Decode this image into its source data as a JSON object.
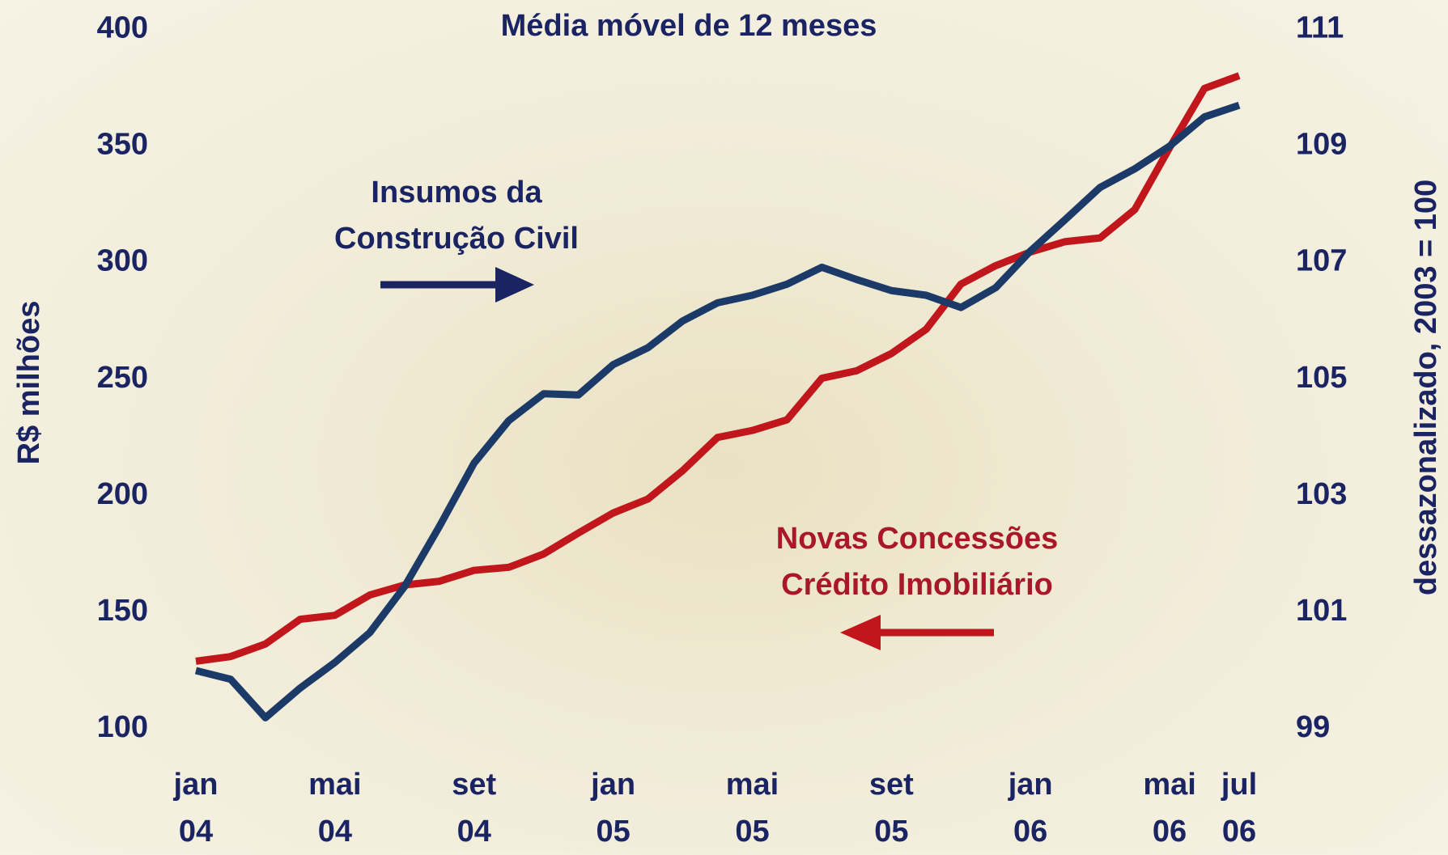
{
  "chart_data": {
    "type": "line",
    "title": "Média móvel de 12 meses",
    "ylabel": "R$ milhões",
    "y2label": "dessazonalizado, 2003 = 100",
    "categories": [
      "jan 04",
      null,
      null,
      null,
      "mai 04",
      null,
      null,
      null,
      "set 04",
      null,
      null,
      null,
      "jan 05",
      null,
      null,
      null,
      "mai 05",
      null,
      null,
      null,
      "set 05",
      null,
      null,
      null,
      "jan 06",
      null,
      null,
      null,
      "mai 06",
      null,
      "jul 06"
    ],
    "ylim": [
      100,
      400
    ],
    "yticks": [
      100,
      150,
      200,
      250,
      300,
      350,
      400
    ],
    "y2lim": [
      99,
      111
    ],
    "y2ticks": [
      99,
      101,
      103,
      105,
      107,
      109,
      111
    ],
    "grid": false,
    "series": [
      {
        "name": "Novas Concessões Crédito Imobiliário",
        "color": "#c0161c",
        "values": [
          129,
          131,
          136.4,
          147,
          148.7,
          157.4,
          161.7,
          163.3,
          168,
          169.3,
          175,
          184,
          192.6,
          198.6,
          210.8,
          225,
          228,
          232.6,
          250.4,
          253.6,
          261,
          271.4,
          290.8,
          298.7,
          304.6,
          309,
          310.6,
          322.8,
          349.3,
          374.7,
          380.2
        ]
      },
      {
        "name": "Insumos da Construção Civil",
        "color": "#1c3a68",
        "axis": "y2",
        "values": [
          100.0,
          99.85,
          99.19,
          99.7,
          100.14,
          100.65,
          101.44,
          102.47,
          103.56,
          104.29,
          104.75,
          104.73,
          105.25,
          105.54,
          106.0,
          106.31,
          106.44,
          106.63,
          106.92,
          106.71,
          106.52,
          106.44,
          106.23,
          106.57,
          107.2,
          107.74,
          108.29,
          108.61,
          109.0,
          109.5,
          109.7
        ]
      }
    ]
  }
}
